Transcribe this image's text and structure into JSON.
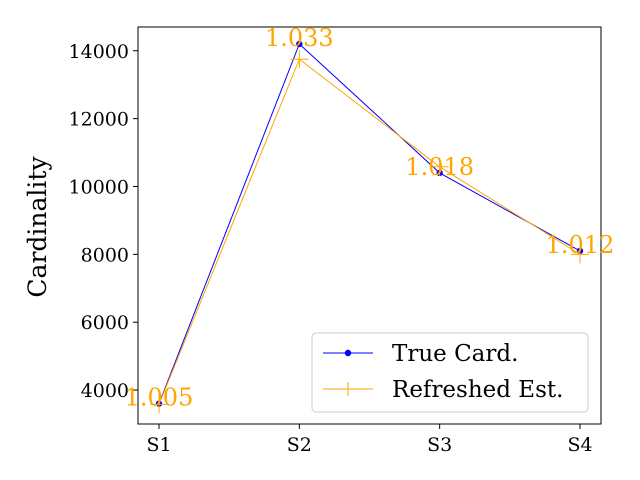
{
  "chart_data": {
    "type": "line",
    "title": "",
    "xlabel": "",
    "ylabel": "Cardinality",
    "categories": [
      "S1",
      "S2",
      "S3",
      "S4"
    ],
    "ylim": [
      3000,
      14700
    ],
    "yticks": [
      4000,
      6000,
      8000,
      10000,
      12000,
      14000
    ],
    "grid": false,
    "legend_position": "lower-right",
    "series": [
      {
        "name": "True Card.",
        "values": [
          3600,
          14200,
          10400,
          8100
        ],
        "color": "#0000ff",
        "marker": "dot"
      },
      {
        "name": "Refreshed Est.",
        "values": [
          3580,
          13750,
          10580,
          8000
        ],
        "color": "#ffa500",
        "marker": "plus"
      }
    ],
    "annotations": [
      {
        "category": "S1",
        "text": "1.005",
        "y": 3600
      },
      {
        "category": "S2",
        "text": "1.033",
        "y": 14200
      },
      {
        "category": "S3",
        "text": "1.018",
        "y": 10400
      },
      {
        "category": "S4",
        "text": "1.012",
        "y": 8100
      }
    ],
    "annotation_color": "#ffa500"
  }
}
